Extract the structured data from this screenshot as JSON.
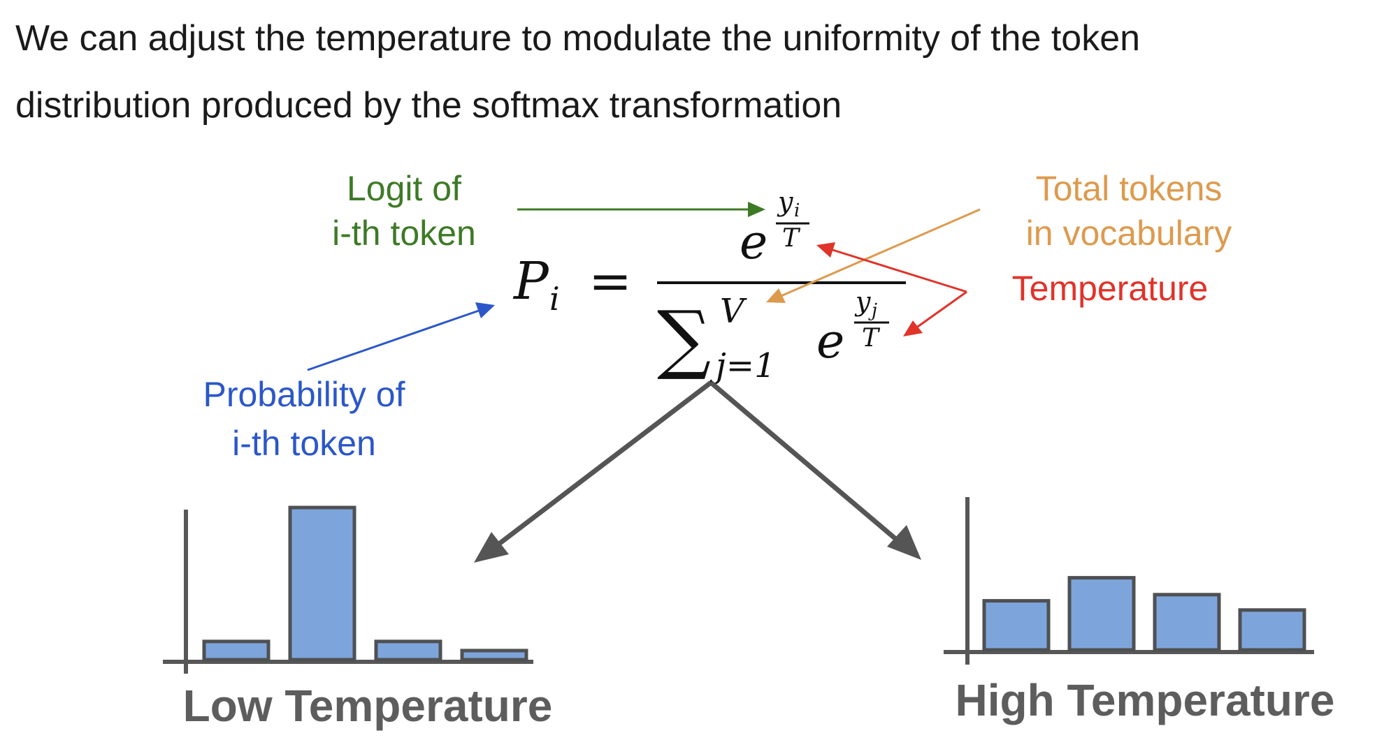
{
  "headline": {
    "line1": "We can adjust the temperature to modulate the uniformity of the token",
    "line2": "distribution produced by the softmax transformation"
  },
  "annotations": {
    "logit": {
      "line1": "Logit of",
      "line2": "i-th token"
    },
    "vocab": {
      "line1": "Total tokens",
      "line2": "in vocabulary"
    },
    "temperature": "Temperature",
    "probability": {
      "line1": "Probability of",
      "line2": "i-th token"
    }
  },
  "formula": {
    "lhs": "P",
    "lhs_sub": "i",
    "equals": "=",
    "base": "e",
    "num_exp_top": "y",
    "num_exp_top_sub": "i",
    "exp_bottom": "T",
    "sum_symbol": "∑",
    "sum_upper": "V",
    "sum_lower": "j=1",
    "den_exp_top": "y",
    "den_exp_top_sub": "j"
  },
  "charts": {
    "low": {
      "label": "Low Temperature"
    },
    "high": {
      "label": "High Temperature"
    }
  },
  "chart_data": [
    {
      "type": "bar",
      "values": [
        0.12,
        1.0,
        0.12,
        0.06
      ],
      "ylim": [
        0,
        1
      ]
    },
    {
      "type": "bar",
      "values": [
        0.32,
        0.47,
        0.36,
        0.26
      ],
      "ylim": [
        0,
        1
      ]
    }
  ],
  "colors": {
    "text": "#1a1a1a",
    "logit": "#3d7a26",
    "vocab": "#dd9a4d",
    "temperature": "#e0332a",
    "probability": "#2b57c9",
    "arrow_gray": "#555555",
    "axis_gray": "#575757",
    "bar_fill": "#7ea5db",
    "bar_stroke": "#4f5052",
    "label_gray": "#5d5d5d"
  }
}
